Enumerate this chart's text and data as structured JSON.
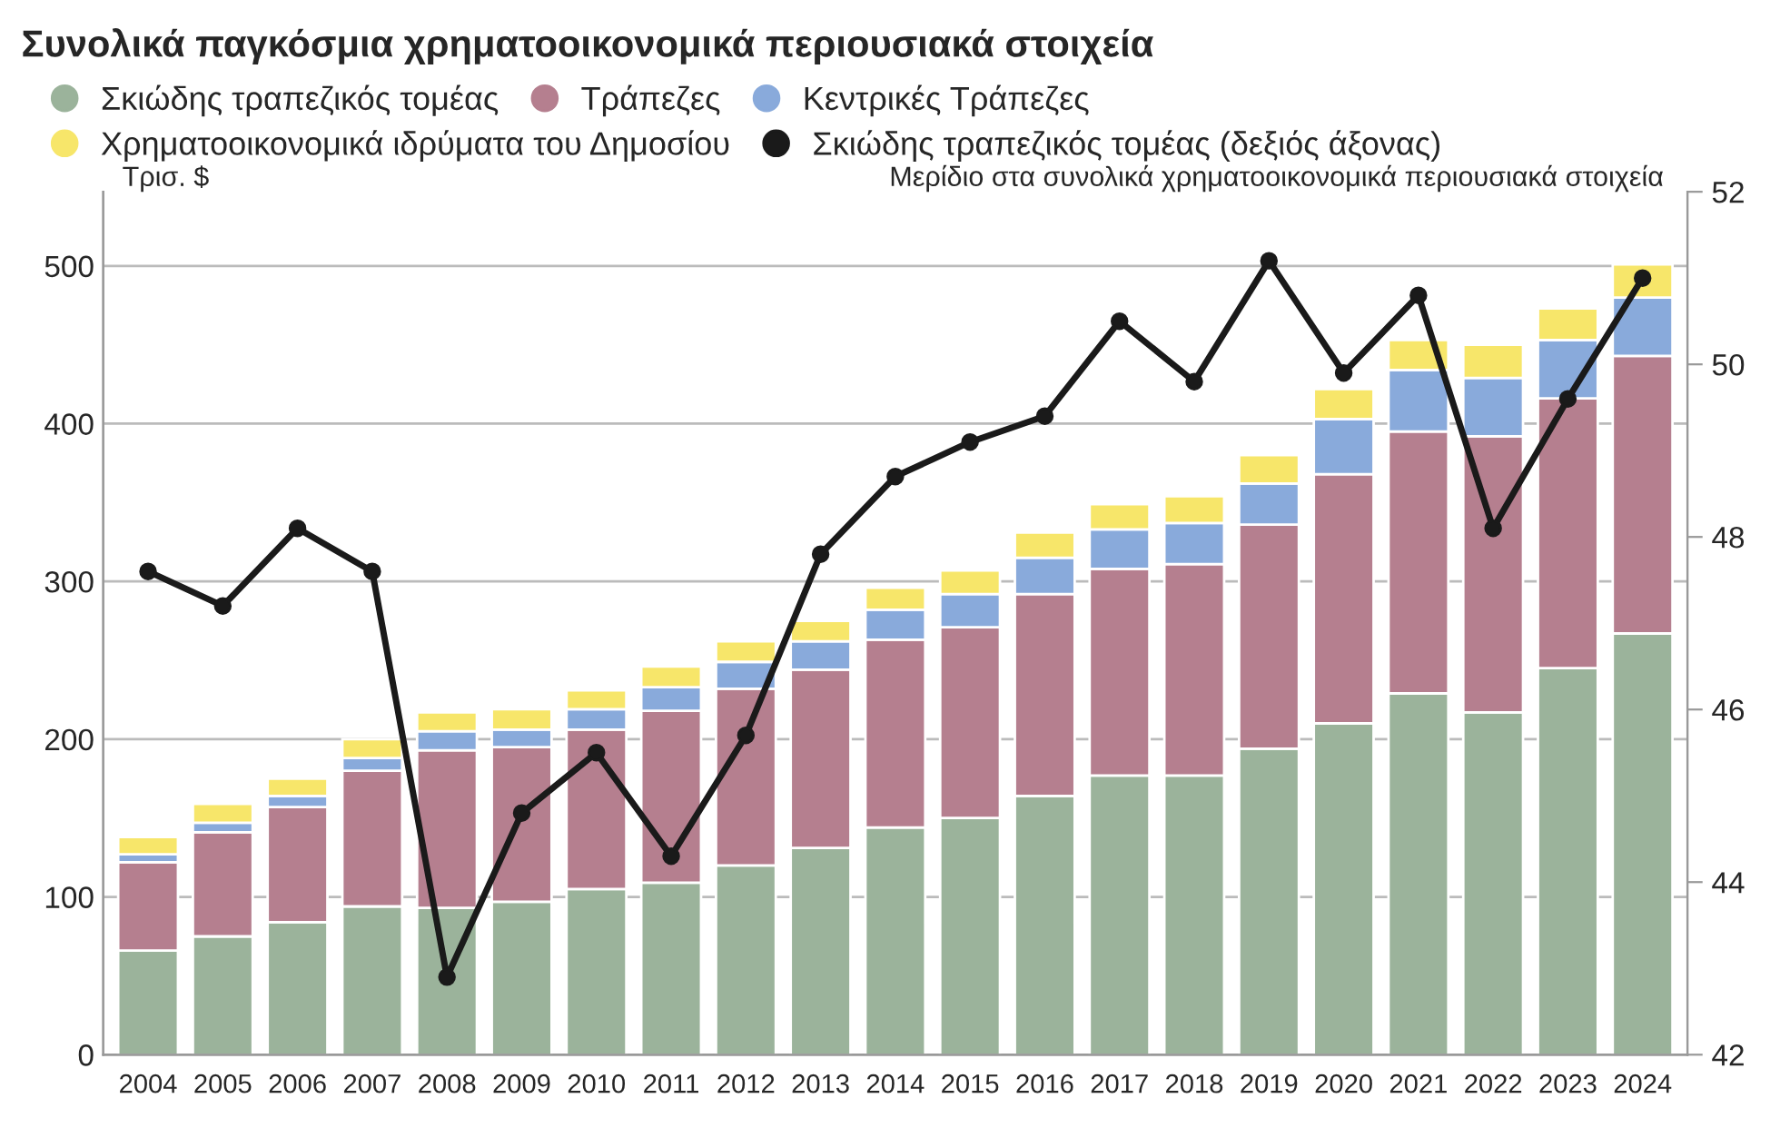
{
  "chart_data": {
    "type": "bar",
    "stacked": true,
    "title": "Συνολικά παγκόσμια χρηματοοικονομικά περιουσιακά στοιχεία",
    "ylabel": "Τρισ. $",
    "y2label": "Μερίδιο στα συνολικά χρηματοοικονομικά περιουσιακά στοιχεία",
    "categories": [
      "2004",
      "2005",
      "2006",
      "2007",
      "2008",
      "2009",
      "2010",
      "2011",
      "2012",
      "2013",
      "2014",
      "2015",
      "2016",
      "2017",
      "2018",
      "2019",
      "2020",
      "2021",
      "2022",
      "2023",
      "2024"
    ],
    "series": [
      {
        "name": "Σκιώδης τραπεζικός τομέας",
        "color": "#9bb39b",
        "values": [
          66,
          75,
          84,
          94,
          93,
          97,
          105,
          109,
          120,
          131,
          144,
          150,
          164,
          177,
          177,
          194,
          210,
          229,
          217,
          245,
          267
        ]
      },
      {
        "name": "Τράπεζες",
        "color": "#b57f8f",
        "values": [
          56,
          66,
          73,
          86,
          100,
          98,
          101,
          109,
          112,
          113,
          119,
          121,
          128,
          131,
          134,
          142,
          158,
          166,
          175,
          171,
          176
        ]
      },
      {
        "name": "Κεντρικές Τράπεζες",
        "color": "#89aadb",
        "values": [
          5,
          6,
          7,
          8,
          12,
          11,
          13,
          15,
          17,
          18,
          19,
          21,
          23,
          25,
          26,
          26,
          35,
          39,
          37,
          37,
          37
        ]
      },
      {
        "name": "Χρηματοοικονομικά ιδρύματα του Δημοσίου",
        "color": "#f7e66a",
        "values": [
          11,
          12,
          11,
          12,
          12,
          13,
          12,
          13,
          13,
          13,
          14,
          15,
          16,
          16,
          17,
          18,
          19,
          19,
          21,
          20,
          21
        ]
      },
      {
        "name": "Σκιώδης τραπεζικός τομέας (δεξιός άξονας)",
        "type": "line",
        "axis": "y2",
        "color": "#1a1a1a",
        "values": [
          47.6,
          47.2,
          48.1,
          47.6,
          42.9,
          44.8,
          45.5,
          44.3,
          45.7,
          47.8,
          48.7,
          49.1,
          49.4,
          50.5,
          49.8,
          51.2,
          49.9,
          50.8,
          48.1,
          49.6,
          51.0
        ]
      }
    ],
    "ylim": [
      0,
      547
    ],
    "yticks": [
      0,
      100,
      200,
      300,
      400,
      500
    ],
    "y2lim": [
      42,
      52
    ],
    "y2ticks": [
      42,
      44,
      46,
      48,
      50,
      52
    ],
    "grid": "y",
    "legend": "top",
    "marker": "circle",
    "line_style": "solid"
  }
}
